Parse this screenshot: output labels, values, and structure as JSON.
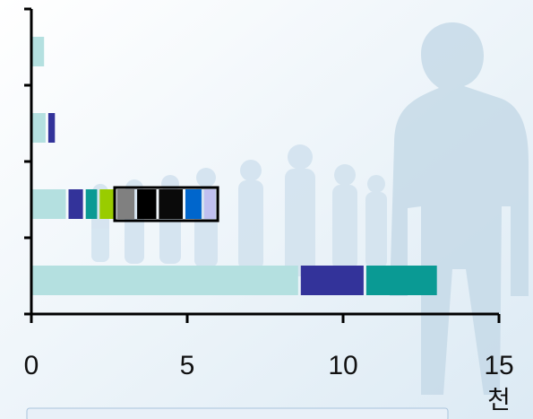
{
  "chart_data": {
    "type": "bar",
    "orientation": "horizontal",
    "stacked": true,
    "xlim": [
      0,
      15
    ],
    "x_ticks": [
      "0",
      "5",
      "10",
      "15"
    ],
    "x_unit_label": "천",
    "category_count": 4,
    "highlight": {
      "row": 2,
      "from_segment": 4,
      "to_segment": 8,
      "border_color": "#000000"
    },
    "rows": [
      {
        "segments": [
          0.45
        ]
      },
      {
        "segments": [
          0.5,
          0.3
        ]
      },
      {
        "segments": [
          1.15,
          0.55,
          0.45,
          0.55,
          0.65,
          0.7,
          0.85,
          0.6,
          0.45
        ]
      },
      {
        "segments": [
          8.6,
          2.1,
          2.35
        ]
      }
    ],
    "segment_colors": [
      "#b4e0e0",
      "#33339a",
      "#0a9a94",
      "#99cc00",
      "#808080",
      "#000000",
      "#0a0a0a",
      "#0066cc",
      "#c0c0f0"
    ],
    "grid": false,
    "legend": "none"
  }
}
